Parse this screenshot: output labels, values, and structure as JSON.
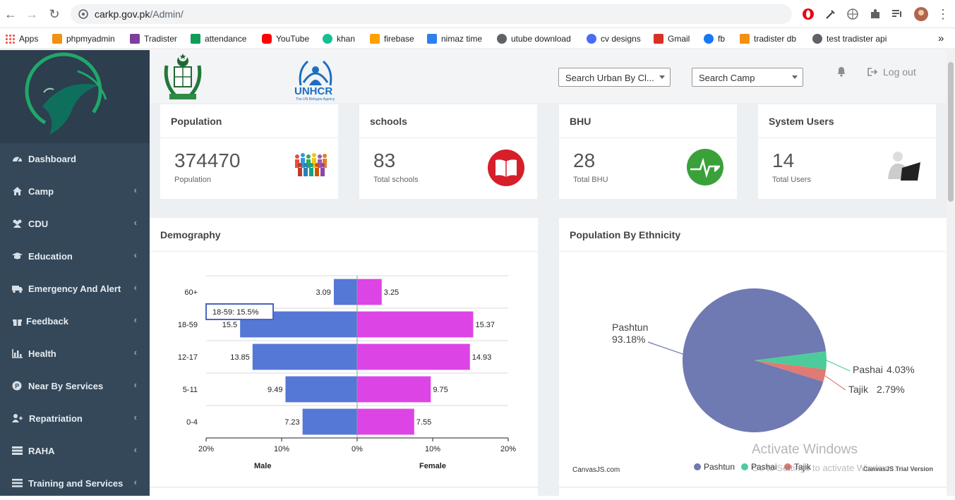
{
  "browser": {
    "url_host": "carkp.gov.pk",
    "url_path": "/Admin/",
    "bookmarks": [
      {
        "label": "Apps",
        "icon": "apps-grid-icon",
        "color": "#ea4335"
      },
      {
        "label": "phpmyadmin",
        "icon": "phpmyadmin-icon",
        "color": "#f29111"
      },
      {
        "label": "Tradister",
        "icon": "tradister-icon",
        "color": "#7b3fa0"
      },
      {
        "label": "attendance",
        "icon": "attendance-icon",
        "color": "#0f9d58"
      },
      {
        "label": "YouTube",
        "icon": "youtube-icon",
        "color": "#ff0000"
      },
      {
        "label": "khan",
        "icon": "khan-icon",
        "color": "#14bf96"
      },
      {
        "label": "firebase",
        "icon": "firebase-icon",
        "color": "#ffa000"
      },
      {
        "label": "nimaz time",
        "icon": "nimaz-icon",
        "color": "#2f80ed"
      },
      {
        "label": "utube download",
        "icon": "globe-icon",
        "color": "#5f6368"
      },
      {
        "label": "cv designs",
        "icon": "cv-icon",
        "color": "#4a6cf7"
      },
      {
        "label": "Gmail",
        "icon": "gmail-icon",
        "color": "#d93025"
      },
      {
        "label": "fb",
        "icon": "facebook-icon",
        "color": "#1877f2"
      },
      {
        "label": "tradister db",
        "icon": "phpmyadmin-icon",
        "color": "#f29111"
      },
      {
        "label": "test tradister api",
        "icon": "globe-icon",
        "color": "#5f6368"
      }
    ],
    "more_label": "»"
  },
  "sidebar": {
    "items": [
      {
        "label": "Dashboard",
        "icon": "dashboard-icon",
        "chevron": ""
      },
      {
        "label": "Camp",
        "icon": "home-icon",
        "chevron": "‹"
      },
      {
        "label": "CDU",
        "icon": "users-icon",
        "chevron": "‹"
      },
      {
        "label": "Education",
        "icon": "graduation-cap-icon",
        "chevron": "‹"
      },
      {
        "label": "Emergency And Alert",
        "icon": "ambulance-icon",
        "chevron": "‹"
      },
      {
        "label": "Feedback",
        "icon": "gift-icon",
        "chevron": "‹"
      },
      {
        "label": "Health",
        "icon": "bar-chart-icon",
        "chevron": "‹"
      },
      {
        "label": "Near By Services",
        "icon": "parking-icon",
        "chevron": "‹"
      },
      {
        "label": "Repatriation",
        "icon": "user-plus-icon",
        "chevron": "‹"
      },
      {
        "label": "RAHA",
        "icon": "server-icon",
        "chevron": "‹"
      },
      {
        "label": "Training and Services",
        "icon": "list-icon",
        "chevron": "‹"
      }
    ]
  },
  "topbar": {
    "unhcr_label": "UNHCR",
    "unhcr_sub": "The UN Refugee Agency",
    "search_urban": "Search Urban By Cl...",
    "search_camp": "Search Camp",
    "logout": "Log out"
  },
  "stats": [
    {
      "title": "Population",
      "value": "374470",
      "sub": "Population"
    },
    {
      "title": "schools",
      "value": "83",
      "sub": "Total schools"
    },
    {
      "title": "BHU",
      "value": "28",
      "sub": "Total BHU"
    },
    {
      "title": "System Users",
      "value": "14",
      "sub": "Total Users"
    }
  ],
  "panels": {
    "demography_title": "Demography",
    "ethnicity_title": "Population By Ethnicity",
    "canvasjs_credit": "CanvasJS.com",
    "trial_label": "CanvasJS Trial Version"
  },
  "watermark": {
    "line1": "Activate Windows",
    "line2": "Go to Settings to activate Windows."
  },
  "chart_data": [
    {
      "type": "bar",
      "title": "Demography",
      "orientation": "horizontal",
      "categories": [
        "60+",
        "18-59",
        "12-17",
        "5-11",
        "0-4"
      ],
      "series": [
        {
          "name": "Male",
          "values": [
            3.09,
            15.5,
            13.85,
            9.49,
            7.23
          ],
          "color": "#5577d6"
        },
        {
          "name": "Female",
          "values": [
            3.25,
            15.37,
            14.93,
            9.75,
            7.55
          ],
          "color": "#dd44e5"
        }
      ],
      "xlim": [
        -20,
        20
      ],
      "ticks": [
        "20%",
        "10%",
        "0%",
        "10%",
        "20%"
      ],
      "xlabels": [
        "Male",
        "Female"
      ],
      "tooltip": "18-59: 15.5%",
      "value_labels": {
        "male": [
          "3.09",
          "15.5",
          "13.85",
          "9.49",
          "7.23"
        ],
        "female": [
          "3.25",
          "15.37",
          "14.93",
          "9.75",
          "7.55"
        ]
      }
    },
    {
      "type": "pie",
      "title": "Population By Ethnicity",
      "labels": [
        "Pashtun",
        "Pashai",
        "Tajik"
      ],
      "values": [
        93.18,
        4.03,
        2.79
      ],
      "label_text": [
        "93.18%",
        "4.03%",
        "2.79%"
      ],
      "colors": [
        "#6f79b2",
        "#4ccc9a",
        "#e07a74"
      ],
      "legend": "bottom"
    }
  ]
}
